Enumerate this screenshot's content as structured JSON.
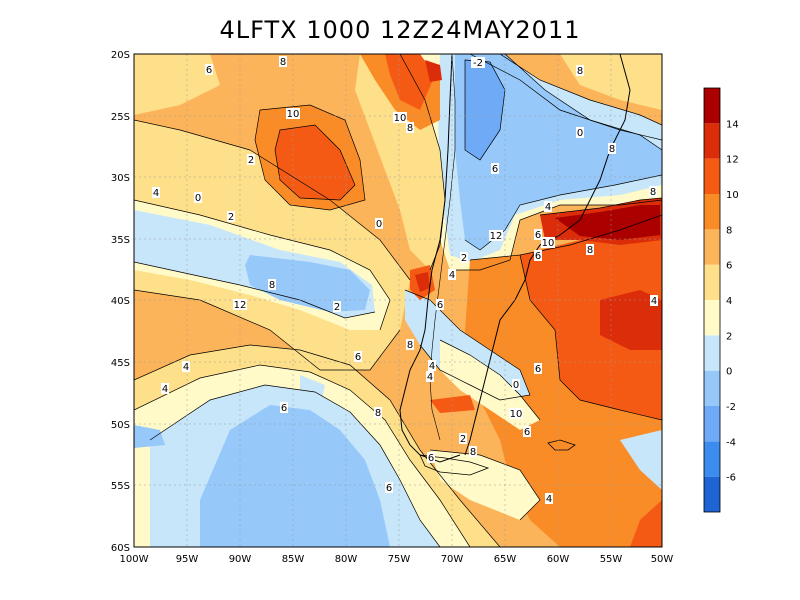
{
  "title": "4LFTX 1000 12Z24MAY2011",
  "lon_labels": [
    "100W",
    "95W",
    "90W",
    "85W",
    "80W",
    "75W",
    "70W",
    "65W",
    "60W",
    "55W",
    "50W"
  ],
  "lat_labels": [
    "20S",
    "25S",
    "30S",
    "35S",
    "40S",
    "45S",
    "50S",
    "55S",
    "60S"
  ],
  "colorbar": {
    "colors": [
      "#1e64d2",
      "#3c8cf0",
      "#6eaaf5",
      "#96c8fa",
      "#c8e6fa",
      "#fffac8",
      "#fee08b",
      "#fcb45a",
      "#fa8c28",
      "#f55a14",
      "#dc2d0a",
      "#aa0000"
    ],
    "labels": [
      "-6",
      "-4",
      "-2",
      "0",
      "2",
      "4",
      "6",
      "8",
      "10",
      "12",
      "14"
    ]
  },
  "contour_labels": [
    "-2",
    "8",
    "6",
    "8",
    "10",
    "10",
    "8",
    "2",
    "0",
    "6",
    "8",
    "4",
    "0",
    "2",
    "0",
    "4",
    "12",
    "8",
    "6",
    "10",
    "8",
    "6",
    "2",
    "4",
    "6",
    "8",
    "12",
    "4",
    "2",
    "8",
    "4",
    "4",
    "6",
    "6",
    "4",
    "0",
    "6",
    "8",
    "10",
    "6",
    "4",
    "2",
    "8",
    "6",
    "6",
    "4"
  ]
}
